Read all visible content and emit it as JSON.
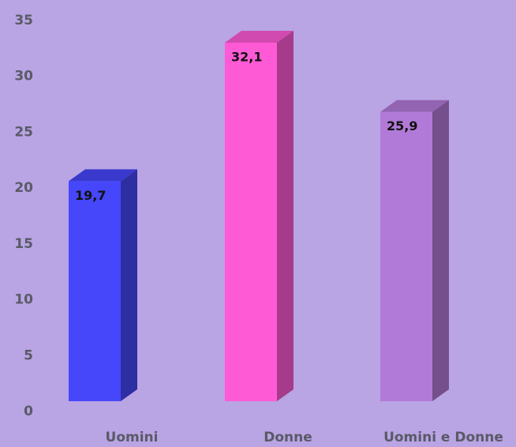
{
  "chart_data": {
    "type": "bar3d",
    "categories": [
      "Uomini",
      "Donne",
      "Uomini e Donne"
    ],
    "values": [
      19.7,
      32.1,
      25.9
    ],
    "value_labels": [
      "19,7",
      "32,1",
      "25,9"
    ],
    "colors": [
      "#4646fa",
      "#ff5ad6",
      "#b27ad8"
    ],
    "ylim": [
      0,
      35
    ],
    "yticks": [
      0,
      5,
      10,
      15,
      20,
      25,
      30,
      35
    ],
    "grid": false
  }
}
